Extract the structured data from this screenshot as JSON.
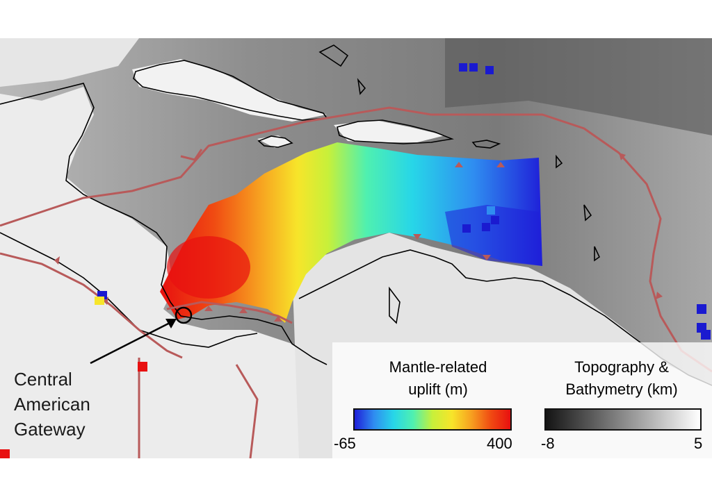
{
  "annotation": {
    "gateway_label_lines": [
      "Central",
      "American",
      "Gateway"
    ]
  },
  "legends": {
    "uplift": {
      "title_line1": "Mantle-related",
      "title_line2": "uplift (m)",
      "min_label": "-65",
      "max_label": "400",
      "colors": [
        "#1f1fd8",
        "#2f8df0",
        "#27d6e8",
        "#4ff0b0",
        "#c7f03a",
        "#f7e52a",
        "#f7a020",
        "#f04a12",
        "#e81010"
      ]
    },
    "topography": {
      "title_line1": "Topography &",
      "title_line2": "Bathymetry (km)",
      "min_label": "-8",
      "max_label": "5",
      "colors": [
        "#141414",
        "#ffffff"
      ]
    }
  },
  "colors": {
    "plate_boundary": "#b85a5a",
    "coastline": "#000000",
    "gateway_marker": "#000000"
  }
}
